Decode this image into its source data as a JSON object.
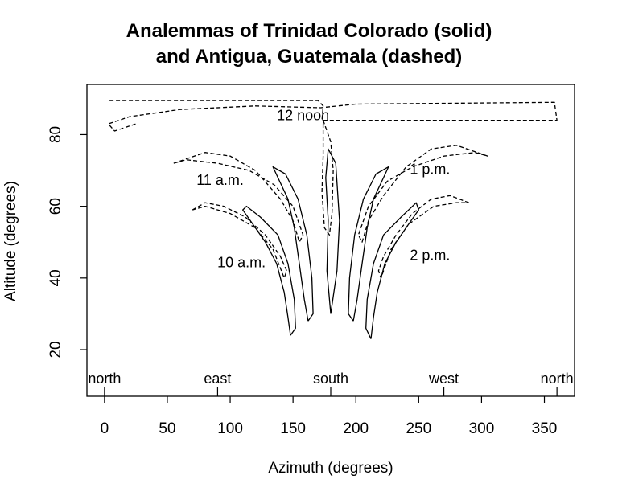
{
  "chart_data": {
    "type": "line",
    "title": "Analemmas of Trinidad Colorado (solid)",
    "subtitle": "and Antigua, Guatemala (dashed)",
    "xlabel": "Azimuth (degrees)",
    "ylabel": "Altitude (degrees)",
    "xlim": [
      -14,
      374
    ],
    "ylim": [
      7,
      94
    ],
    "xticks": [
      0,
      50,
      100,
      150,
      200,
      250,
      300,
      350
    ],
    "yticks": [
      20,
      40,
      60,
      80
    ],
    "grid": false,
    "compass_marks": [
      {
        "label": "north",
        "x": 0
      },
      {
        "label": "east",
        "x": 90
      },
      {
        "label": "south",
        "x": 180
      },
      {
        "label": "west",
        "x": 270
      },
      {
        "label": "north",
        "x": 360
      }
    ],
    "annotations": [
      {
        "text": "12 noon",
        "x": 158,
        "y": 84
      },
      {
        "text": "11 a.m.",
        "x": 92,
        "y": 66
      },
      {
        "text": "1 p.m.",
        "x": 259,
        "y": 69
      },
      {
        "text": "10 a.m.",
        "x": 109,
        "y": 43
      },
      {
        "text": "2 p.m.",
        "x": 259,
        "y": 45
      }
    ],
    "series": [
      {
        "id": "trinidad-10am",
        "style": "solid",
        "points": [
          [
            148,
            24
          ],
          [
            152,
            26
          ],
          [
            151,
            34
          ],
          [
            146,
            44
          ],
          [
            138,
            52
          ],
          [
            124,
            57
          ],
          [
            113,
            60
          ],
          [
            110,
            59
          ],
          [
            118,
            55
          ],
          [
            128,
            50
          ],
          [
            137,
            44
          ],
          [
            143,
            36
          ],
          [
            146,
            29
          ],
          [
            148,
            24
          ]
        ]
      },
      {
        "id": "trinidad-11am",
        "style": "solid",
        "points": [
          [
            162,
            28
          ],
          [
            166,
            30
          ],
          [
            165,
            40
          ],
          [
            161,
            52
          ],
          [
            154,
            62
          ],
          [
            144,
            69
          ],
          [
            134,
            71
          ],
          [
            138,
            68
          ],
          [
            146,
            62
          ],
          [
            151,
            54
          ],
          [
            155,
            44
          ],
          [
            159,
            34
          ],
          [
            162,
            28
          ]
        ]
      },
      {
        "id": "trinidad-noon",
        "style": "solid",
        "points": [
          [
            180,
            30
          ],
          [
            185,
            42
          ],
          [
            187,
            56
          ],
          [
            184,
            72
          ],
          [
            178,
            76
          ],
          [
            176,
            68
          ],
          [
            178,
            56
          ],
          [
            177,
            42
          ],
          [
            180,
            30
          ]
        ]
      },
      {
        "id": "trinidad-1pm",
        "style": "solid",
        "points": [
          [
            198,
            28
          ],
          [
            194,
            30
          ],
          [
            195,
            40
          ],
          [
            199,
            52
          ],
          [
            206,
            62
          ],
          [
            216,
            69
          ],
          [
            226,
            71
          ],
          [
            222,
            68
          ],
          [
            214,
            62
          ],
          [
            209,
            54
          ],
          [
            205,
            44
          ],
          [
            201,
            34
          ],
          [
            198,
            28
          ]
        ]
      },
      {
        "id": "trinidad-2pm",
        "style": "solid",
        "points": [
          [
            212,
            23
          ],
          [
            208,
            26
          ],
          [
            209,
            34
          ],
          [
            214,
            44
          ],
          [
            222,
            52
          ],
          [
            236,
            57
          ],
          [
            248,
            61
          ],
          [
            250,
            59
          ],
          [
            242,
            55
          ],
          [
            232,
            50
          ],
          [
            223,
            44
          ],
          [
            217,
            36
          ],
          [
            214,
            29
          ],
          [
            212,
            23
          ]
        ]
      },
      {
        "id": "antigua-noon-high",
        "style": "dashed",
        "points": [
          [
            4,
            89.5
          ],
          [
            100,
            89.5
          ],
          [
            170,
            89.5
          ],
          [
            174,
            88
          ],
          [
            173,
            84
          ],
          [
            360,
            84
          ],
          [
            358,
            89
          ],
          [
            200,
            88.5
          ],
          [
            172,
            87.5
          ],
          [
            120,
            88
          ],
          [
            60,
            87
          ],
          [
            20,
            85
          ],
          [
            3,
            83
          ],
          [
            8,
            81
          ],
          [
            25,
            83
          ]
        ]
      },
      {
        "id": "antigua-noon-loop",
        "style": "dashed",
        "points": [
          [
            174,
            84
          ],
          [
            180,
            78
          ],
          [
            182,
            70
          ],
          [
            181,
            58
          ],
          [
            179,
            52
          ],
          [
            175,
            54
          ],
          [
            173,
            64
          ],
          [
            174,
            74
          ],
          [
            174,
            84
          ]
        ]
      },
      {
        "id": "antigua-11am",
        "style": "dashed",
        "points": [
          [
            55,
            72
          ],
          [
            80,
            75
          ],
          [
            100,
            74
          ],
          [
            120,
            70
          ],
          [
            140,
            62
          ],
          [
            150,
            56
          ],
          [
            155,
            50
          ],
          [
            158,
            52
          ],
          [
            150,
            60
          ],
          [
            135,
            66
          ],
          [
            115,
            70
          ],
          [
            90,
            72
          ],
          [
            65,
            73
          ],
          [
            55,
            72
          ]
        ]
      },
      {
        "id": "antigua-1pm",
        "style": "dashed",
        "points": [
          [
            305,
            74
          ],
          [
            280,
            77
          ],
          [
            260,
            76
          ],
          [
            240,
            71
          ],
          [
            222,
            63
          ],
          [
            210,
            56
          ],
          [
            205,
            50
          ],
          [
            202,
            52
          ],
          [
            210,
            60
          ],
          [
            225,
            67
          ],
          [
            245,
            71
          ],
          [
            270,
            74
          ],
          [
            295,
            75
          ],
          [
            305,
            74
          ]
        ]
      },
      {
        "id": "antigua-10am",
        "style": "dashed",
        "points": [
          [
            70,
            59
          ],
          [
            80,
            61
          ],
          [
            95,
            60
          ],
          [
            112,
            57
          ],
          [
            128,
            52
          ],
          [
            140,
            46
          ],
          [
            145,
            42
          ],
          [
            143,
            40
          ],
          [
            134,
            48
          ],
          [
            120,
            54
          ],
          [
            100,
            58
          ],
          [
            80,
            60
          ],
          [
            70,
            59
          ]
        ]
      },
      {
        "id": "antigua-2pm",
        "style": "dashed",
        "points": [
          [
            290,
            61
          ],
          [
            275,
            63
          ],
          [
            260,
            62
          ],
          [
            245,
            58
          ],
          [
            232,
            52
          ],
          [
            222,
            46
          ],
          [
            218,
            42
          ],
          [
            220,
            40
          ],
          [
            228,
            48
          ],
          [
            242,
            55
          ],
          [
            262,
            60
          ],
          [
            280,
            61
          ],
          [
            290,
            61
          ]
        ]
      }
    ]
  }
}
